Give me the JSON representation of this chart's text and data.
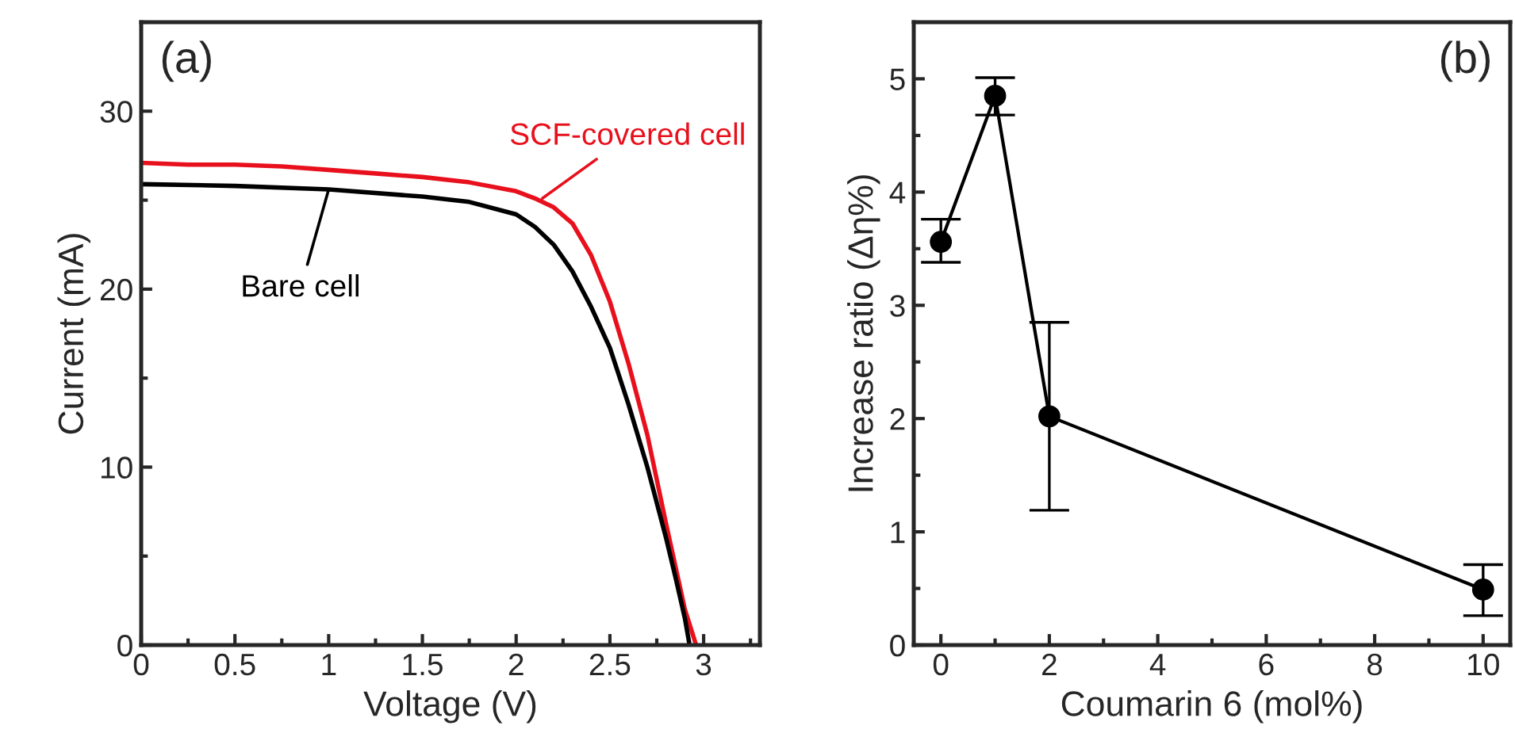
{
  "chart_data": [
    {
      "type": "line",
      "xlabel": "Voltage (V)",
      "ylabel": "Current (mA)",
      "annotations": [
        "(a)",
        {
          "text": "SCF-covered cell",
          "x": 2.14,
          "y": 25.1
        },
        {
          "text": "Bare cell",
          "x": 1.0,
          "y": 25.6
        }
      ],
      "series": [
        {
          "color": "#e8101c",
          "x": [
            0,
            0.25,
            0.5,
            0.75,
            1.0,
            1.25,
            1.5,
            1.75,
            2.0,
            2.1,
            2.2,
            2.3,
            2.4,
            2.5,
            2.6,
            2.7,
            2.8,
            2.85,
            2.9,
            2.96
          ],
          "values": [
            27.1,
            27.0,
            27.0,
            26.9,
            26.7,
            26.5,
            26.3,
            26.0,
            25.5,
            25.1,
            24.6,
            23.7,
            21.9,
            19.3,
            15.8,
            11.8,
            6.8,
            4.4,
            2.0,
            0
          ]
        },
        {
          "color": "#000000",
          "x": [
            0,
            0.5,
            1.0,
            1.5,
            1.75,
            2.0,
            2.1,
            2.2,
            2.3,
            2.4,
            2.5,
            2.6,
            2.7,
            2.8,
            2.85,
            2.9,
            2.925
          ],
          "values": [
            25.9,
            25.8,
            25.6,
            25.2,
            24.9,
            24.2,
            23.5,
            22.5,
            21.0,
            19.0,
            16.7,
            13.5,
            10.0,
            6.0,
            3.8,
            1.5,
            0
          ]
        }
      ],
      "xlim": [
        0,
        3.3
      ],
      "xticks": [
        0,
        0.5,
        1,
        1.5,
        2,
        2.5,
        3
      ],
      "ylim": [
        0,
        35
      ],
      "yticks": [
        0,
        10,
        20,
        30
      ],
      "grid": false,
      "marker": "none",
      "line_style": "solid"
    },
    {
      "type": "line",
      "xlabel": "Coumarin 6 (mol%)",
      "ylabel": "Increase ratio (Δη%)",
      "annotations": [
        "(b)"
      ],
      "x": [
        0,
        1,
        2,
        10
      ],
      "values": [
        3.56,
        4.85,
        2.02,
        0.49
      ],
      "errors": [
        [
          3.38,
          3.76
        ],
        [
          4.68,
          5.01
        ],
        [
          1.19,
          2.85
        ],
        [
          0.26,
          0.71
        ]
      ],
      "color": "#000000",
      "xlim": [
        -0.5,
        10.5
      ],
      "xticks": [
        0,
        2,
        4,
        6,
        8,
        10
      ],
      "ylim": [
        0,
        5.5
      ],
      "yticks": [
        0,
        1,
        2,
        3,
        4,
        5
      ],
      "grid": false,
      "marker": "circle",
      "line_style": "solid"
    }
  ]
}
